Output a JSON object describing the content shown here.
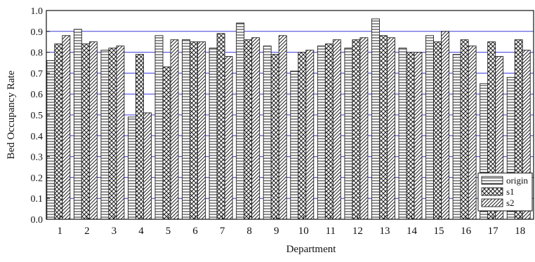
{
  "chart_data": {
    "type": "bar",
    "title": "",
    "xlabel": "Department",
    "ylabel": "Bed Occupancy Rate",
    "ylim": [
      0.0,
      1.0
    ],
    "yticks": [
      "0.0",
      "0.1",
      "0.2",
      "0.3",
      "0.4",
      "0.5",
      "0.6",
      "0.7",
      "0.8",
      "0.9",
      "1.0"
    ],
    "grid": "horizontal",
    "grid_color": "#3b3bdc",
    "legend_position": "bottom-right",
    "categories": [
      "1",
      "2",
      "3",
      "4",
      "5",
      "6",
      "7",
      "8",
      "9",
      "10",
      "11",
      "12",
      "13",
      "14",
      "15",
      "16",
      "17",
      "18"
    ],
    "series": [
      {
        "name": "origin",
        "pattern": "horizontal-lines",
        "values": [
          0.76,
          0.91,
          0.81,
          0.49,
          0.88,
          0.86,
          0.82,
          0.94,
          0.83,
          0.71,
          0.83,
          0.82,
          0.96,
          0.82,
          0.88,
          0.79,
          0.65,
          0.68
        ]
      },
      {
        "name": "s1",
        "pattern": "crosshatch",
        "values": [
          0.84,
          0.84,
          0.82,
          0.79,
          0.73,
          0.85,
          0.89,
          0.86,
          0.79,
          0.8,
          0.84,
          0.86,
          0.88,
          0.8,
          0.85,
          0.86,
          0.85,
          0.86
        ]
      },
      {
        "name": "s2",
        "pattern": "diagonal-lines",
        "values": [
          0.88,
          0.85,
          0.83,
          0.51,
          0.86,
          0.85,
          0.78,
          0.87,
          0.88,
          0.81,
          0.86,
          0.87,
          0.87,
          0.8,
          0.9,
          0.83,
          0.78,
          0.81
        ]
      }
    ]
  }
}
